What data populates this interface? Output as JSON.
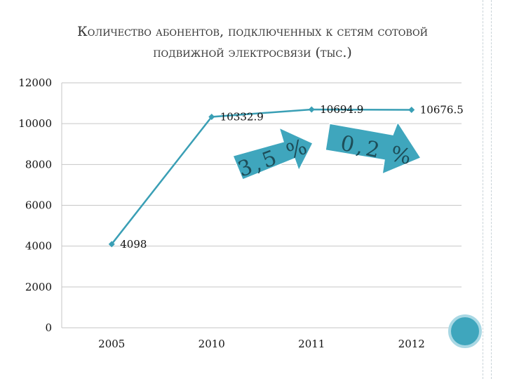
{
  "title_line1": "Количество абонентов, подключенных к сетям сотовой",
  "title_line2": "подвижной электросвязи (тыс.)",
  "chart_data": {
    "type": "line",
    "categories": [
      "2005",
      "2010",
      "2011",
      "2012"
    ],
    "series": [
      {
        "values": [
          4098,
          10332.9,
          10694.9,
          10676.5
        ]
      }
    ],
    "data_labels": [
      "4098",
      "10332.9",
      "10694.9",
      "10676.5"
    ],
    "yticks": [
      "0",
      "2000",
      "4000",
      "6000",
      "8000",
      "10000",
      "12000"
    ],
    "ylim": [
      0,
      12000
    ],
    "grid": "horizontal",
    "legend": "none",
    "line_color": "#3a9fb5",
    "annotations": [
      {
        "text": "3,5 %",
        "from": "2010",
        "to": "2011",
        "color": "#3fa6bd"
      },
      {
        "text": "0,2 %",
        "from": "2011",
        "to": "2012",
        "color": "#3fa6bd"
      }
    ]
  },
  "colors": {
    "grid": "#c6c6c6",
    "circle": "#3fa6bd",
    "circle_ring": "#a9d8e4"
  }
}
